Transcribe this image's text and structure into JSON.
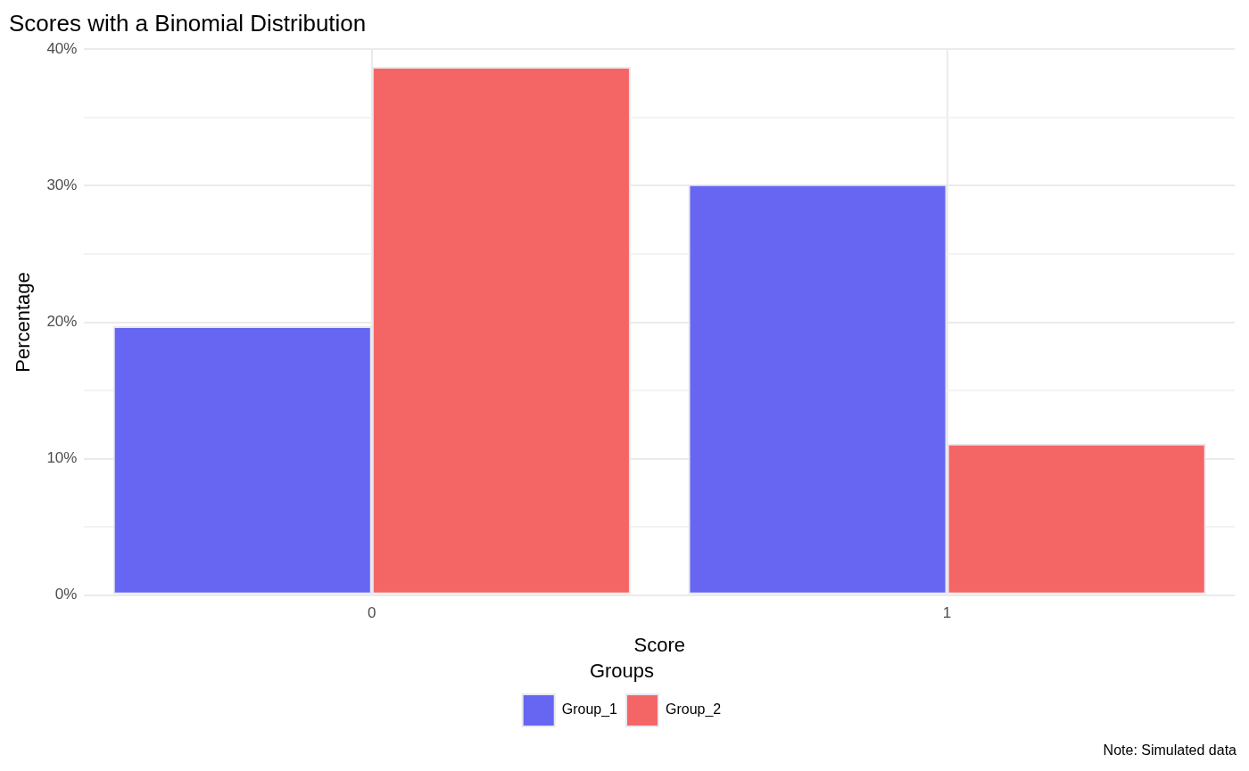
{
  "chart_data": {
    "type": "bar",
    "title": "Scores with a Binomial Distribution",
    "xlabel": "Score",
    "ylabel": "Percentage",
    "legend_title": "Groups",
    "annotations": [
      "Note: Simulated data"
    ],
    "categories": [
      "0",
      "1"
    ],
    "series": [
      {
        "name": "Group_1",
        "color": "#6666f2",
        "values": [
          19.7,
          30.1
        ]
      },
      {
        "name": "Group_2",
        "color": "#f46666",
        "values": [
          38.7,
          11.1
        ]
      }
    ],
    "ylim": [
      0,
      40
    ],
    "yticks": [
      {
        "value": 0,
        "label": "0%"
      },
      {
        "value": 5,
        "label": null
      },
      {
        "value": 10,
        "label": "10%"
      },
      {
        "value": 15,
        "label": null
      },
      {
        "value": 20,
        "label": "20%"
      },
      {
        "value": 25,
        "label": null
      },
      {
        "value": 30,
        "label": "30%"
      },
      {
        "value": 35,
        "label": null
      },
      {
        "value": 40,
        "label": "40%"
      }
    ],
    "grid": true,
    "legend": "bottom"
  }
}
